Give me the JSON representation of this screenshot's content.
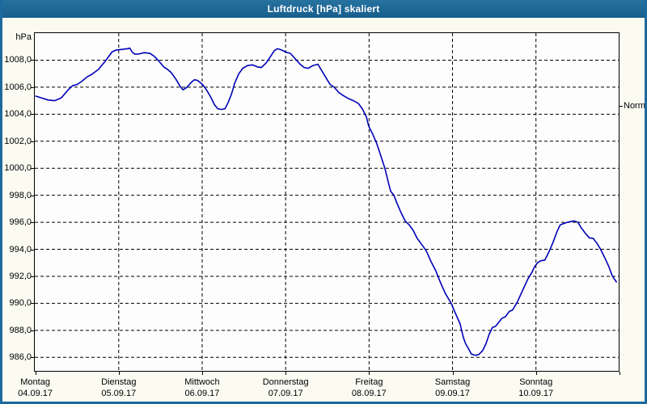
{
  "window": {
    "title": "Luftdruck [hPa] skaliert"
  },
  "colors": {
    "frame_blue": "#1c6a9d",
    "titlebar_top": "#27729f",
    "titlebar_bottom": "#175e8d",
    "page_background": "#fbfbf2",
    "plot_background": "#fdfdfd",
    "gridline": "#000000",
    "series_line": "#0000b8",
    "text": "#000000"
  },
  "chart_data": {
    "type": "line",
    "title": "Luftdruck [hPa] skaliert",
    "unit_label": "hPa",
    "grid": "dashed",
    "legend_position": "none",
    "y_axis": {
      "min": 985,
      "max": 1010,
      "tick_values": [
        1008,
        1006,
        1004,
        1002,
        1000,
        998,
        996,
        994,
        992,
        990,
        988,
        986
      ],
      "tick_labels": [
        "1008,0",
        "1006,0",
        "1004,0",
        "1002,0",
        "1000,0",
        "998,0",
        "996,0",
        "994,0",
        "992,0",
        "990,0",
        "988,0",
        "986,0"
      ]
    },
    "x_axis": {
      "unit": "days",
      "range_days": [
        0,
        7
      ],
      "day_labels": [
        {
          "name": "Montag",
          "date": "04.09.17"
        },
        {
          "name": "Dienstag",
          "date": "05.09.17"
        },
        {
          "name": "Mittwoch",
          "date": "06.09.17"
        },
        {
          "name": "Donnerstag",
          "date": "07.09.17"
        },
        {
          "name": "Freitag",
          "date": "08.09.17"
        },
        {
          "name": "Samstag",
          "date": "09.09.17"
        },
        {
          "name": "Sonntag",
          "date": "10.09.17"
        }
      ]
    },
    "normal_marker": {
      "label": "Normal",
      "value": 1004.6
    },
    "series": [
      {
        "name": "Luftdruck",
        "color": "#0000b8",
        "points": [
          [
            0.0,
            1005.35
          ],
          [
            0.077,
            1005.2
          ],
          [
            0.155,
            1005.05
          ],
          [
            0.232,
            1005.0
          ],
          [
            0.31,
            1005.2
          ],
          [
            0.387,
            1005.75
          ],
          [
            0.445,
            1006.1
          ],
          [
            0.503,
            1006.2
          ],
          [
            0.561,
            1006.45
          ],
          [
            0.619,
            1006.75
          ],
          [
            0.677,
            1006.95
          ],
          [
            0.755,
            1007.3
          ],
          [
            0.842,
            1007.95
          ],
          [
            0.919,
            1008.6
          ],
          [
            0.968,
            1008.75
          ],
          [
            1.045,
            1008.8
          ],
          [
            1.113,
            1008.85
          ],
          [
            1.132,
            1008.9
          ],
          [
            1.161,
            1008.6
          ],
          [
            1.19,
            1008.45
          ],
          [
            1.239,
            1008.45
          ],
          [
            1.306,
            1008.55
          ],
          [
            1.374,
            1008.5
          ],
          [
            1.423,
            1008.3
          ],
          [
            1.471,
            1008.0
          ],
          [
            1.539,
            1007.5
          ],
          [
            1.577,
            1007.35
          ],
          [
            1.626,
            1007.1
          ],
          [
            1.684,
            1006.6
          ],
          [
            1.732,
            1006.1
          ],
          [
            1.771,
            1005.8
          ],
          [
            1.819,
            1006.0
          ],
          [
            1.868,
            1006.35
          ],
          [
            1.906,
            1006.55
          ],
          [
            1.945,
            1006.5
          ],
          [
            2.003,
            1006.2
          ],
          [
            2.052,
            1005.8
          ],
          [
            2.1,
            1005.3
          ],
          [
            2.148,
            1004.7
          ],
          [
            2.187,
            1004.4
          ],
          [
            2.226,
            1004.35
          ],
          [
            2.274,
            1004.4
          ],
          [
            2.313,
            1004.9
          ],
          [
            2.352,
            1005.5
          ],
          [
            2.39,
            1006.3
          ],
          [
            2.439,
            1007.0
          ],
          [
            2.487,
            1007.4
          ],
          [
            2.545,
            1007.6
          ],
          [
            2.603,
            1007.65
          ],
          [
            2.661,
            1007.5
          ],
          [
            2.71,
            1007.45
          ],
          [
            2.768,
            1007.8
          ],
          [
            2.816,
            1008.25
          ],
          [
            2.865,
            1008.7
          ],
          [
            2.903,
            1008.85
          ],
          [
            2.952,
            1008.75
          ],
          [
            3.0,
            1008.6
          ],
          [
            3.058,
            1008.5
          ],
          [
            3.116,
            1008.1
          ],
          [
            3.174,
            1007.7
          ],
          [
            3.223,
            1007.45
          ],
          [
            3.271,
            1007.4
          ],
          [
            3.329,
            1007.6
          ],
          [
            3.387,
            1007.7
          ],
          [
            3.435,
            1007.2
          ],
          [
            3.484,
            1006.7
          ],
          [
            3.532,
            1006.2
          ],
          [
            3.581,
            1006.0
          ],
          [
            3.639,
            1005.6
          ],
          [
            3.697,
            1005.35
          ],
          [
            3.755,
            1005.15
          ],
          [
            3.813,
            1005.0
          ],
          [
            3.871,
            1004.8
          ],
          [
            3.919,
            1004.4
          ],
          [
            3.968,
            1003.8
          ],
          [
            3.997,
            1003.1
          ],
          [
            4.045,
            1002.5
          ],
          [
            4.094,
            1001.8
          ],
          [
            4.142,
            1000.9
          ],
          [
            4.19,
            1000.0
          ],
          [
            4.229,
            999.0
          ],
          [
            4.258,
            998.3
          ],
          [
            4.297,
            998.0
          ],
          [
            4.335,
            997.4
          ],
          [
            4.384,
            996.7
          ],
          [
            4.432,
            996.1
          ],
          [
            4.481,
            995.8
          ],
          [
            4.529,
            995.4
          ],
          [
            4.577,
            994.8
          ],
          [
            4.626,
            994.4
          ],
          [
            4.684,
            993.9
          ],
          [
            4.742,
            993.1
          ],
          [
            4.8,
            992.4
          ],
          [
            4.858,
            991.5
          ],
          [
            4.916,
            990.7
          ],
          [
            4.984,
            990.0
          ],
          [
            5.032,
            989.3
          ],
          [
            5.09,
            988.5
          ],
          [
            5.129,
            987.5
          ],
          [
            5.158,
            987.0
          ],
          [
            5.187,
            986.7
          ],
          [
            5.226,
            986.25
          ],
          [
            5.274,
            986.15
          ],
          [
            5.313,
            986.2
          ],
          [
            5.361,
            986.5
          ],
          [
            5.4,
            987.0
          ],
          [
            5.439,
            987.7
          ],
          [
            5.477,
            988.2
          ],
          [
            5.516,
            988.3
          ],
          [
            5.555,
            988.6
          ],
          [
            5.594,
            988.9
          ],
          [
            5.632,
            989.0
          ],
          [
            5.681,
            989.4
          ],
          [
            5.719,
            989.5
          ],
          [
            5.777,
            990.1
          ],
          [
            5.835,
            990.9
          ],
          [
            5.903,
            991.8
          ],
          [
            5.952,
            992.3
          ],
          [
            5.981,
            992.7
          ],
          [
            6.019,
            993.0
          ],
          [
            6.058,
            993.15
          ],
          [
            6.106,
            993.2
          ],
          [
            6.155,
            993.8
          ],
          [
            6.203,
            994.5
          ],
          [
            6.252,
            995.3
          ],
          [
            6.29,
            995.8
          ],
          [
            6.329,
            995.9
          ],
          [
            6.377,
            996.0
          ],
          [
            6.416,
            996.05
          ],
          [
            6.455,
            996.1
          ],
          [
            6.503,
            996.0
          ],
          [
            6.542,
            995.6
          ],
          [
            6.59,
            995.2
          ],
          [
            6.639,
            994.85
          ],
          [
            6.687,
            994.8
          ],
          [
            6.735,
            994.4
          ],
          [
            6.774,
            994.0
          ],
          [
            6.823,
            993.4
          ],
          [
            6.871,
            992.75
          ],
          [
            6.91,
            992.1
          ],
          [
            6.939,
            991.8
          ],
          [
            6.968,
            991.55
          ]
        ]
      }
    ]
  }
}
